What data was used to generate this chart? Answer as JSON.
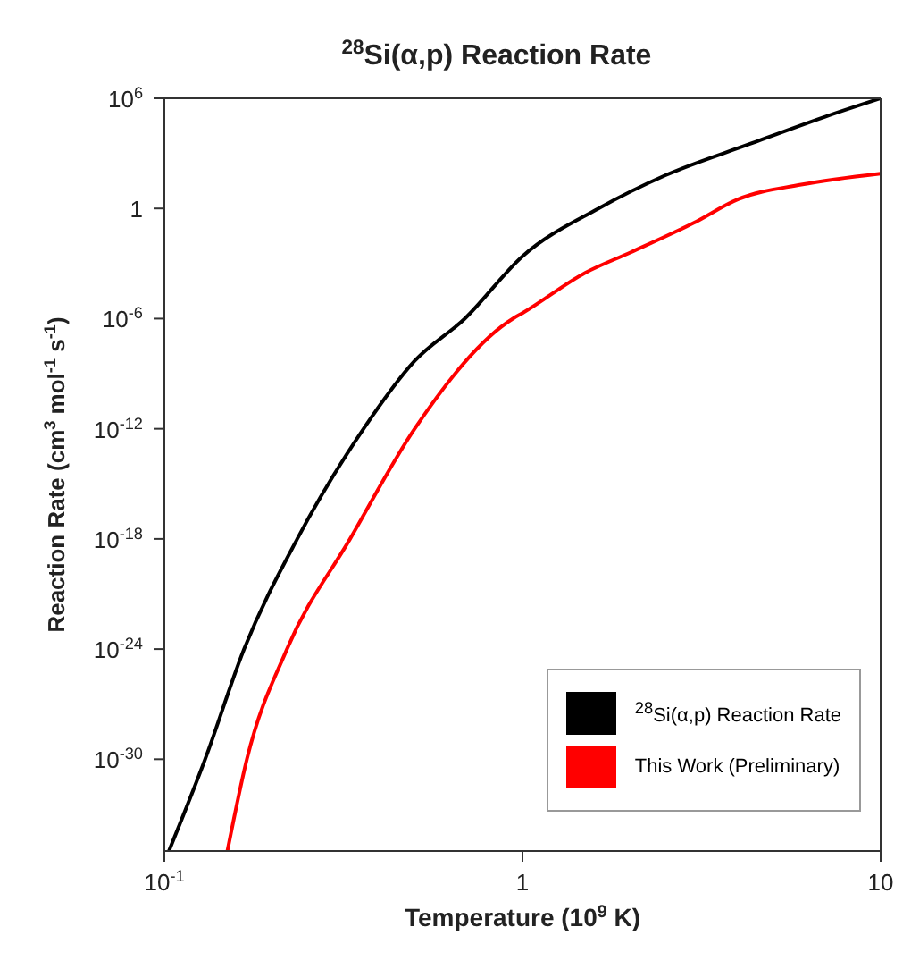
{
  "chart_data": {
    "type": "line",
    "title": "$^{28}$Si(α,p) Reaction Rate",
    "xlabel": "Temperature (10$^{9}$ K)",
    "ylabel": "Reaction Rate (cm$^{3}$ mol$^{-1}$ s$^{-1}$)",
    "log": "xy",
    "grid": false,
    "legend": "bottom right",
    "marker": "none",
    "line_style": "solid",
    "xlim": [
      0.1,
      10
    ],
    "xticks": [
      {
        "value": 0.1,
        "label": "10$^{-1}$"
      },
      1,
      10
    ],
    "ylim": [
      1e-35,
      1000000.0
    ],
    "yticks": [
      {
        "value": 1e-30,
        "label": "10$^{-30}$"
      },
      {
        "value": 1e-24,
        "label": "10$^{-24}$"
      },
      {
        "value": 1e-18,
        "label": "10$^{-18}$"
      },
      {
        "value": 1e-12,
        "label": "10$^{-12}$"
      },
      {
        "value": 1e-06,
        "label": "10$^{-6}$"
      },
      1,
      {
        "value": 1000000.0,
        "label": "10$^{6}$"
      }
    ],
    "series": [
      {
        "name": "$^{28}$Si(α,p) Reaction Rate",
        "color": "#000000",
        "x": [
          0.103,
          0.13,
          0.167,
          0.235,
          0.36,
          0.5,
          0.69,
          1,
          1.63,
          2.5,
          4.3,
          7,
          10
        ],
        "values": [
          1e-35,
          1e-30,
          1e-24,
          1e-18,
          1e-12,
          5e-09,
          1e-06,
          0.0025,
          1,
          63,
          3200,
          100000,
          1000000
        ]
      },
      {
        "name": "This Work (Preliminary)",
        "color": "#ff0000",
        "x": [
          0.15,
          0.17,
          0.22,
          0.33,
          0.5,
          0.94,
          1,
          1.5,
          2,
          3,
          4,
          6,
          10
        ],
        "values": [
          1e-35,
          1e-30,
          1e-24,
          1e-18,
          1e-12,
          1e-06,
          2e-06,
          0.00032,
          0.004,
          0.16,
          3.2,
          20,
          80
        ]
      }
    ]
  }
}
